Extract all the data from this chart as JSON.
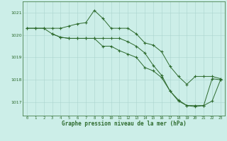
{
  "xlabel": "Graphe pression niveau de la mer (hPa)",
  "ylim": [
    1016.4,
    1021.5
  ],
  "xlim": [
    -0.5,
    23.5
  ],
  "yticks": [
    1017,
    1018,
    1019,
    1020,
    1021
  ],
  "xticks": [
    0,
    1,
    2,
    3,
    4,
    5,
    6,
    7,
    8,
    9,
    10,
    11,
    12,
    13,
    14,
    15,
    16,
    17,
    18,
    19,
    20,
    21,
    22,
    23
  ],
  "bg_color": "#cceee8",
  "grid_color": "#aad4ce",
  "line_color": "#2d6a2d",
  "line1_x": [
    0,
    1,
    2,
    3,
    4,
    5,
    6,
    7,
    8,
    9,
    10,
    11,
    12,
    13,
    14,
    15,
    16,
    17,
    18,
    19,
    20,
    21,
    22,
    23
  ],
  "line1_y": [
    1020.3,
    1020.3,
    1020.3,
    1020.3,
    1020.3,
    1020.4,
    1020.5,
    1020.55,
    1021.1,
    1020.75,
    1020.3,
    1020.3,
    1020.3,
    1020.05,
    1019.65,
    1019.55,
    1019.25,
    1018.6,
    1018.15,
    1017.8,
    1018.15,
    1018.15,
    1018.15,
    1018.05
  ],
  "line2_x": [
    0,
    1,
    2,
    3,
    4,
    5,
    6,
    7,
    8,
    9,
    10,
    11,
    12,
    13,
    14,
    15,
    16,
    17,
    18,
    19,
    20,
    21,
    22,
    23
  ],
  "line2_y": [
    1020.3,
    1020.3,
    1020.3,
    1020.05,
    1019.9,
    1019.85,
    1019.85,
    1019.85,
    1019.85,
    1019.85,
    1019.85,
    1019.85,
    1019.7,
    1019.5,
    1019.2,
    1018.65,
    1018.2,
    1017.5,
    1017.1,
    1016.85,
    1016.85,
    1016.85,
    1017.05,
    1018.0
  ],
  "line3_x": [
    3,
    4,
    5,
    6,
    7,
    8,
    9,
    10,
    11,
    12,
    13,
    14,
    15,
    16,
    17,
    18,
    19,
    20,
    21,
    22,
    23
  ],
  "line3_y": [
    1020.05,
    1019.9,
    1019.85,
    1019.85,
    1019.85,
    1019.85,
    1019.5,
    1019.5,
    1019.3,
    1019.15,
    1019.0,
    1018.55,
    1018.4,
    1018.1,
    1017.5,
    1017.05,
    1016.85,
    1016.8,
    1016.85,
    1018.05,
    1018.0
  ]
}
